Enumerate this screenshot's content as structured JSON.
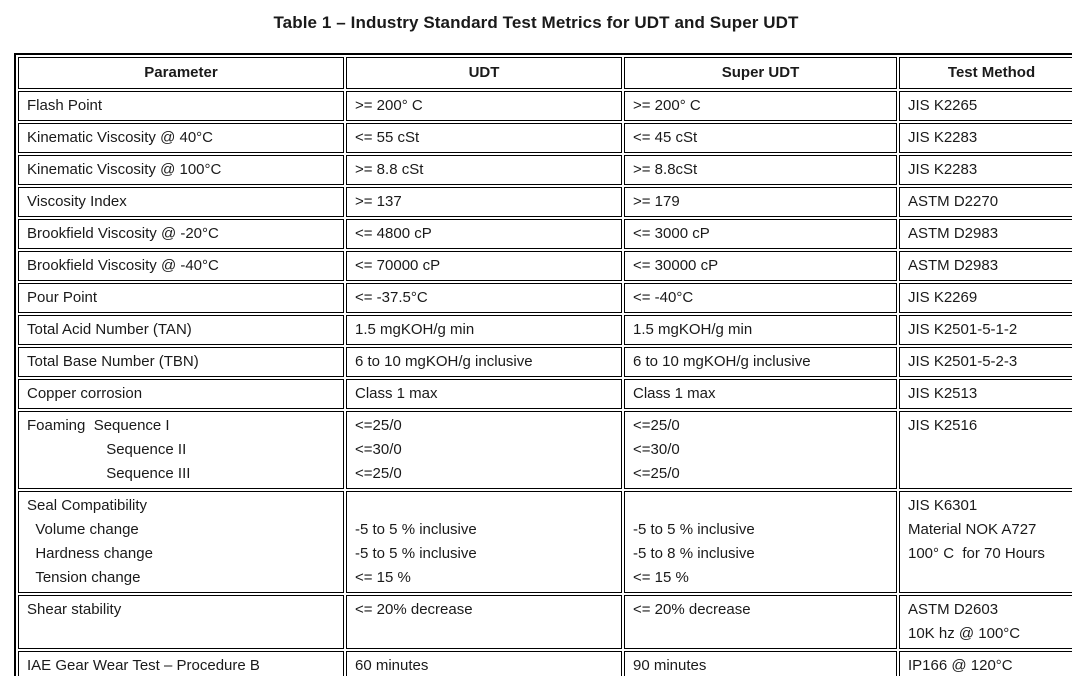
{
  "title": "Table 1 – Industry Standard Test Metrics for UDT and Super UDT",
  "colors": {
    "text": "#1a1a1a",
    "border": "#000000",
    "background": "#ffffff"
  },
  "table": {
    "headers": [
      "Parameter",
      "UDT",
      "Super UDT",
      "Test Method"
    ],
    "rows": [
      [
        "Flash Point",
        ">= 200° C",
        ">= 200° C",
        "JIS K2265"
      ],
      [
        "Kinematic Viscosity @ 40°C",
        "<= 55 cSt",
        "<= 45 cSt",
        "JIS K2283"
      ],
      [
        "Kinematic Viscosity @ 100°C",
        ">= 8.8 cSt",
        ">= 8.8cSt",
        "JIS K2283"
      ],
      [
        "Viscosity Index",
        ">= 137",
        ">= 179",
        "ASTM D2270"
      ],
      [
        "Brookfield Viscosity @ -20°C",
        "<= 4800 cP",
        "<= 3000 cP",
        "ASTM D2983"
      ],
      [
        "Brookfield Viscosity @ -40°C",
        "<= 70000 cP",
        "<= 30000 cP",
        "ASTM D2983"
      ],
      [
        "Pour Point",
        "<= -37.5°C",
        "<= -40°C",
        "JIS K2269"
      ],
      [
        "Total Acid Number (TAN)",
        "1.5 mgKOH/g min",
        "1.5 mgKOH/g min",
        "JIS K2501-5-1-2"
      ],
      [
        "Total Base Number (TBN)",
        "6 to 10 mgKOH/g inclusive",
        "6 to 10 mgKOH/g inclusive",
        "JIS K2501-5-2-3"
      ],
      [
        "Copper corrosion",
        "Class 1 max",
        "Class 1 max",
        "JIS K2513"
      ],
      [
        "Foaming  Sequence I\n                   Sequence II\n                   Sequence III",
        "<=25/0\n<=30/0\n<=25/0",
        "<=25/0\n<=30/0\n<=25/0",
        "JIS K2516"
      ],
      [
        "Seal Compatibility\n  Volume change\n  Hardness change\n  Tension change",
        "\n-5 to 5 % inclusive\n-5 to 5 % inclusive\n<= 15 %",
        "\n-5 to 5 % inclusive\n-5 to 8 % inclusive\n<= 15 %",
        "JIS K6301\nMaterial NOK A727\n100° C  for 70 Hours"
      ],
      [
        "Shear stability",
        "<= 20% decrease",
        "<= 20% decrease",
        "ASTM D2603\n10K hz @ 100°C"
      ],
      [
        "IAE Gear Wear Test – Procedure B",
        "60 minutes",
        "90 minutes",
        "IP166 @ 120°C"
      ]
    ]
  }
}
